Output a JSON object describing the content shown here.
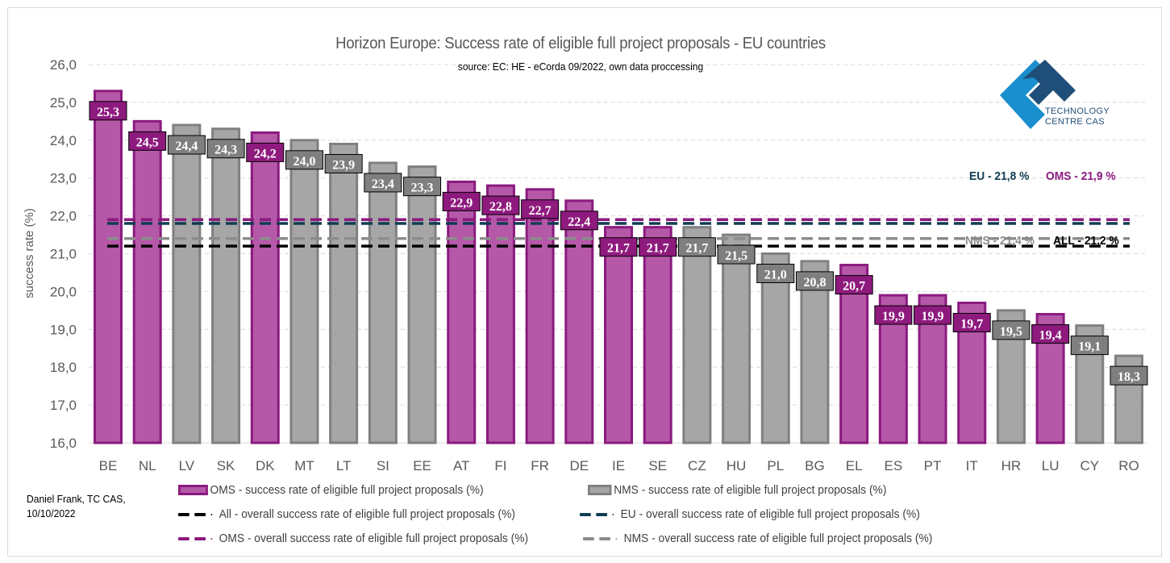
{
  "chart_data": {
    "type": "bar",
    "title": "Horizon Europe: Success rate of eligible full project proposals - EU countries",
    "subtitle": "source: EC:  HE - eCorda 09/2022, own data proccessing",
    "xlabel": "",
    "ylabel": "success rate (%)",
    "ylim": [
      16,
      26
    ],
    "yticks": [
      "16,0",
      "17,0",
      "18,0",
      "19,0",
      "20,0",
      "21,0",
      "22,0",
      "23,0",
      "24,0",
      "25,0",
      "26,0"
    ],
    "grid": true,
    "legend_position": "bottom",
    "categories": [
      "BE",
      "NL",
      "LV",
      "SK",
      "DK",
      "MT",
      "LT",
      "SI",
      "EE",
      "AT",
      "FI",
      "FR",
      "DE",
      "IE",
      "SE",
      "CZ",
      "HU",
      "PL",
      "BG",
      "EL",
      "ES",
      "PT",
      "IT",
      "HR",
      "LU",
      "CY",
      "RO"
    ],
    "values": [
      25.3,
      24.5,
      24.4,
      24.3,
      24.2,
      24.0,
      23.9,
      23.4,
      23.3,
      22.9,
      22.8,
      22.7,
      22.4,
      21.7,
      21.7,
      21.7,
      21.5,
      21.0,
      20.8,
      20.7,
      19.9,
      19.9,
      19.7,
      19.5,
      19.4,
      19.1,
      18.3
    ],
    "value_labels": [
      "25,3",
      "24,5",
      "24,4",
      "24,3",
      "24,2",
      "24,0",
      "23,9",
      "23,4",
      "23,3",
      "22,9",
      "22,8",
      "22,7",
      "22,4",
      "21,7",
      "21,7",
      "21,7",
      "21,5",
      "21,0",
      "20,8",
      "20,7",
      "19,9",
      "19,9",
      "19,7",
      "19,5",
      "19,4",
      "19,1",
      "18,3"
    ],
    "groups": [
      "OMS",
      "OMS",
      "NMS",
      "NMS",
      "OMS",
      "NMS",
      "NMS",
      "NMS",
      "NMS",
      "OMS",
      "OMS",
      "OMS",
      "OMS",
      "OMS",
      "OMS",
      "NMS",
      "NMS",
      "NMS",
      "NMS",
      "OMS",
      "OMS",
      "OMS",
      "OMS",
      "NMS",
      "OMS",
      "NMS",
      "NMS"
    ],
    "series": [
      {
        "name": "OMS - success rate of eligible full project proposals (%)",
        "type": "bar",
        "color": "#b558a8",
        "border": "#8b1a7f"
      },
      {
        "name": "NMS - success rate of eligible full project proposals (%)",
        "type": "bar",
        "color": "#a6a6a6",
        "border": "#808080"
      }
    ],
    "reference_lines": [
      {
        "key": "eu",
        "name": "EU - overall success rate of eligible full project proposals (%)",
        "value": 21.8,
        "color": "#0f3d52",
        "label": "EU - 21,8 %"
      },
      {
        "key": "oms",
        "name": "OMS - overall success rate of eligible full project proposals (%)",
        "value": 21.9,
        "color": "#8b1a7f",
        "label": "OMS - 21,9 %"
      },
      {
        "key": "nms",
        "name": "NMS - overall success rate of eligible full project proposals (%)",
        "value": 21.4,
        "color": "#8c8c8c",
        "label": "NMS - 21,4 %"
      },
      {
        "key": "all",
        "name": "All - overall success rate of eligible full project proposals (%)",
        "value": 21.2,
        "color": "#000000",
        "label": "ALL - 21,2 %"
      }
    ],
    "label_box_colors": {
      "OMS": "#8e1a7e",
      "NMS": "#7f7f7f"
    }
  },
  "logo": {
    "line1": "TECHNOLOGY",
    "line2": "CENTRE CAS"
  },
  "author": {
    "line1": "Daniel Frank, TC CAS,",
    "line2": "10/10/2022"
  },
  "legend": {
    "oms_bar": "OMS - success rate of eligible full project proposals (%)",
    "nms_bar": "NMS - success rate of eligible full project proposals (%)",
    "all_line": "All - overall success rate of eligible full project proposals (%)",
    "eu_line": "EU - overall success rate of eligible full project proposals (%)",
    "oms_line": "OMS - overall success rate of eligible full project proposals (%)",
    "nms_line": "NMS - overall success rate of eligible full project proposals (%)"
  }
}
